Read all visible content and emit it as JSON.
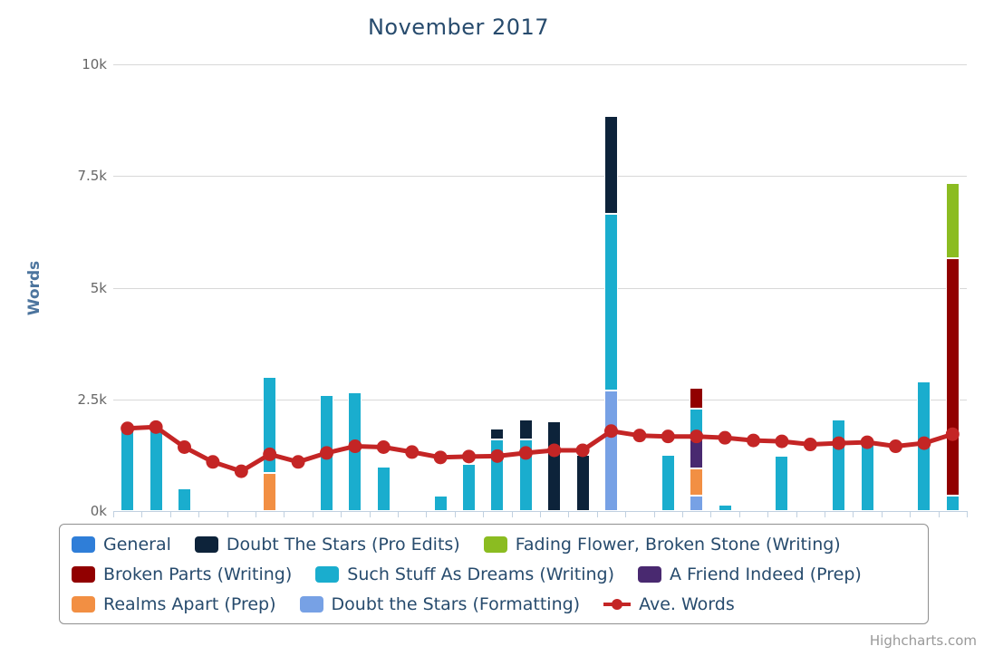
{
  "chart": {
    "title": "November 2017",
    "credits": "Highcharts.com"
  },
  "yaxis": {
    "title": "Words",
    "ticks": [
      {
        "label": "0k",
        "value": 0
      },
      {
        "label": "2.5k",
        "value": 2500
      },
      {
        "label": "5k",
        "value": 5000
      },
      {
        "label": "7.5k",
        "value": 7500
      },
      {
        "label": "10k",
        "value": 10000
      }
    ]
  },
  "legend": {
    "rows": [
      [
        0,
        1,
        2
      ],
      [
        3,
        4,
        5
      ],
      [
        6,
        7,
        8
      ]
    ]
  },
  "chart_data": {
    "type": "bar",
    "subtype": "stacked-columns-with-average-line",
    "title": "November 2017",
    "xlabel": "",
    "ylabel": "Words",
    "ylim": [
      0,
      10000
    ],
    "grid": true,
    "legend_position": "bottom",
    "x": [
      1,
      2,
      3,
      4,
      5,
      6,
      7,
      8,
      9,
      10,
      11,
      12,
      13,
      14,
      15,
      16,
      17,
      18,
      19,
      20,
      21,
      22,
      23,
      24,
      25,
      26,
      27,
      28,
      29,
      30
    ],
    "stack_order_note": "columns stack bottom-to-top in reverse of series list order",
    "series": [
      {
        "name": "General",
        "color": "#2f7ed8",
        "kind": "column",
        "values": [
          0,
          0,
          0,
          0,
          0,
          0,
          0,
          0,
          0,
          0,
          0,
          0,
          0,
          0,
          0,
          0,
          0,
          0,
          0,
          0,
          0,
          0,
          0,
          0,
          0,
          0,
          0,
          0,
          0,
          0
        ]
      },
      {
        "name": "Doubt The Stars (Pro Edits)",
        "color": "#0d233a",
        "kind": "column",
        "values": [
          0,
          0,
          0,
          0,
          0,
          0,
          0,
          0,
          0,
          0,
          0,
          0,
          0,
          250,
          450,
          2000,
          1250,
          2200,
          0,
          0,
          0,
          0,
          0,
          0,
          0,
          0,
          0,
          0,
          0,
          0
        ]
      },
      {
        "name": "Fading Flower, Broken Stone (Writing)",
        "color": "#8bbc21",
        "kind": "column",
        "values": [
          0,
          0,
          0,
          0,
          0,
          0,
          0,
          0,
          0,
          0,
          0,
          0,
          0,
          0,
          0,
          0,
          0,
          0,
          0,
          0,
          0,
          0,
          0,
          0,
          0,
          0,
          0,
          0,
          0,
          1700
        ]
      },
      {
        "name": "Broken Parts (Writing)",
        "color": "#910000",
        "kind": "column",
        "values": [
          0,
          0,
          0,
          0,
          0,
          0,
          0,
          0,
          0,
          0,
          0,
          0,
          0,
          0,
          0,
          0,
          0,
          0,
          0,
          0,
          450,
          0,
          0,
          0,
          0,
          0,
          0,
          0,
          0,
          5300
        ]
      },
      {
        "name": "Such Stuff As Dreams (Writing)",
        "color": "#1aadce",
        "kind": "column",
        "values": [
          1800,
          1800,
          500,
          0,
          0,
          2150,
          0,
          2600,
          2650,
          1000,
          0,
          350,
          1050,
          1600,
          1600,
          0,
          0,
          3950,
          0,
          1250,
          700,
          150,
          0,
          1230,
          0,
          2050,
          1500,
          0,
          2900,
          350
        ]
      },
      {
        "name": "A Friend Indeed (Prep)",
        "color": "#492970",
        "kind": "column",
        "values": [
          0,
          0,
          0,
          0,
          0,
          0,
          0,
          0,
          0,
          0,
          0,
          0,
          0,
          0,
          0,
          0,
          0,
          0,
          0,
          0,
          650,
          0,
          0,
          0,
          0,
          0,
          0,
          0,
          0,
          0
        ]
      },
      {
        "name": "Realms Apart (Prep)",
        "color": "#f28f43",
        "kind": "column",
        "values": [
          0,
          0,
          0,
          0,
          0,
          850,
          0,
          0,
          0,
          0,
          0,
          0,
          0,
          0,
          0,
          0,
          0,
          0,
          0,
          0,
          600,
          0,
          0,
          0,
          0,
          0,
          0,
          0,
          0,
          0
        ]
      },
      {
        "name": "Doubt the Stars (Formatting)",
        "color": "#77a1e5",
        "kind": "column",
        "values": [
          0,
          0,
          0,
          0,
          0,
          0,
          0,
          0,
          0,
          0,
          0,
          0,
          0,
          0,
          0,
          0,
          0,
          2700,
          0,
          0,
          350,
          0,
          0,
          0,
          0,
          0,
          0,
          0,
          0,
          0
        ]
      }
    ],
    "line_series": {
      "name": "Ave. Words",
      "color": "#c42525",
      "kind": "line",
      "values": [
        1850,
        1880,
        1430,
        1100,
        890,
        1270,
        1100,
        1300,
        1450,
        1430,
        1320,
        1200,
        1220,
        1230,
        1300,
        1360,
        1360,
        1790,
        1690,
        1670,
        1670,
        1640,
        1580,
        1560,
        1490,
        1520,
        1540,
        1450,
        1520,
        1720
      ]
    }
  }
}
